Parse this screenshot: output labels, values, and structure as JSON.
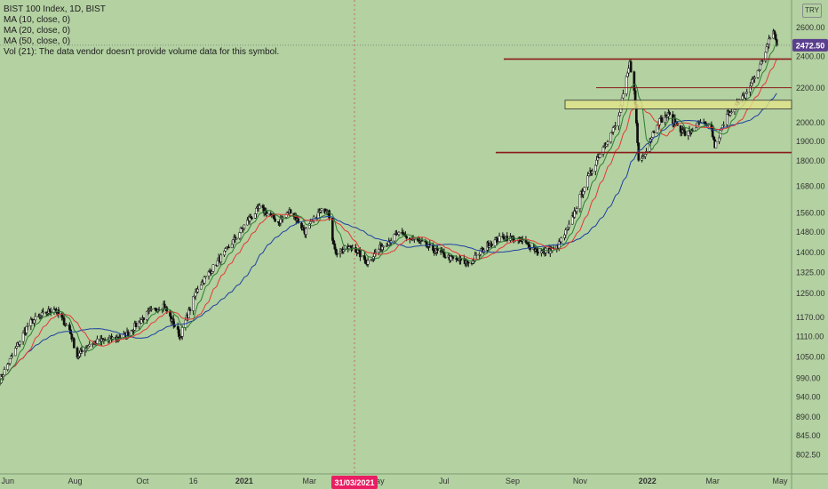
{
  "legend": {
    "symbol": "BIST 100 Index, 1D, BIST",
    "ma10": "MA (10, close, 0)",
    "ma20": "MA (20, close, 0)",
    "ma50": "MA (50, close, 0)",
    "vol": "Vol (21): The data vendor doesn't provide volume data for this symbol."
  },
  "currency": "TRY",
  "colors": {
    "background": "#b3d1a1",
    "candle": "#111111",
    "ma10": "#2e7d32",
    "ma20": "#e53935",
    "ma50": "#1e3fa0",
    "support_line": "#8b1a1a",
    "zone_fill": "#e2e48a",
    "price_badge": "#5b3f8f",
    "date_badge": "#e91e63"
  },
  "chart_data": {
    "type": "candlestick",
    "y_scale": "log",
    "ylim": [
      760,
      2800
    ],
    "x_ticks": [
      "Jun",
      "Aug",
      "Oct",
      "16",
      "2021",
      "Mar",
      "May",
      "Jul",
      "Sep",
      "Nov",
      "2022",
      "Mar",
      "May"
    ],
    "y_ticks": [
      "2600.00",
      "2400.00",
      "2200.00",
      "2000.00",
      "1900.00",
      "1800.00",
      "1680.00",
      "1560.00",
      "1480.00",
      "1400.00",
      "1325.00",
      "1250.00",
      "1170.00",
      "1110.00",
      "1050.00",
      "990.00",
      "940.00",
      "890.00",
      "845.00",
      "802.50"
    ],
    "last_price": "2472.50",
    "crosshair_date": "31/03/2021",
    "horizontal_lines": [
      {
        "value": 2380,
        "start": "Nov 2021"
      },
      {
        "value": 2200,
        "start": "Nov 2021"
      },
      {
        "value": 1840,
        "start": "Oct 2021"
      }
    ],
    "zone": {
      "from": 2075,
      "to": 2125,
      "start": "Nov 2021"
    },
    "anchors": [
      {
        "date": "2020-05-25",
        "close": 985
      },
      {
        "date": "2020-06-20",
        "close": 1150
      },
      {
        "date": "2020-07-13",
        "close": 1200
      },
      {
        "date": "2020-07-27",
        "close": 1130
      },
      {
        "date": "2020-08-03",
        "close": 1050
      },
      {
        "date": "2020-08-15",
        "close": 1090
      },
      {
        "date": "2020-09-15",
        "close": 1110
      },
      {
        "date": "2020-10-05",
        "close": 1180
      },
      {
        "date": "2020-10-20",
        "close": 1210
      },
      {
        "date": "2020-11-04",
        "close": 1110
      },
      {
        "date": "2020-11-20",
        "close": 1270
      },
      {
        "date": "2020-12-15",
        "close": 1400
      },
      {
        "date": "2021-01-05",
        "close": 1530
      },
      {
        "date": "2021-01-15",
        "close": 1580
      },
      {
        "date": "2021-02-01",
        "close": 1520
      },
      {
        "date": "2021-02-12",
        "close": 1570
      },
      {
        "date": "2021-02-25",
        "close": 1480
      },
      {
        "date": "2021-03-10",
        "close": 1560
      },
      {
        "date": "2021-03-18",
        "close": 1580
      },
      {
        "date": "2021-03-24",
        "close": 1400
      },
      {
        "date": "2021-04-10",
        "close": 1420
      },
      {
        "date": "2021-04-22",
        "close": 1360
      },
      {
        "date": "2021-05-05",
        "close": 1420
      },
      {
        "date": "2021-05-20",
        "close": 1470
      },
      {
        "date": "2021-06-08",
        "close": 1440
      },
      {
        "date": "2021-06-25",
        "close": 1400
      },
      {
        "date": "2021-07-10",
        "close": 1370
      },
      {
        "date": "2021-07-25",
        "close": 1360
      },
      {
        "date": "2021-08-10",
        "close": 1430
      },
      {
        "date": "2021-08-25",
        "close": 1460
      },
      {
        "date": "2021-09-10",
        "close": 1440
      },
      {
        "date": "2021-09-25",
        "close": 1400
      },
      {
        "date": "2021-10-10",
        "close": 1410
      },
      {
        "date": "2021-10-22",
        "close": 1500
      },
      {
        "date": "2021-11-05",
        "close": 1680
      },
      {
        "date": "2021-11-20",
        "close": 1850
      },
      {
        "date": "2021-12-05",
        "close": 2000
      },
      {
        "date": "2021-12-16",
        "close": 2350
      },
      {
        "date": "2021-12-20",
        "close": 2200
      },
      {
        "date": "2021-12-24",
        "close": 1800
      },
      {
        "date": "2021-12-28",
        "close": 1820
      },
      {
        "date": "2022-01-10",
        "close": 2000
      },
      {
        "date": "2022-01-20",
        "close": 2040
      },
      {
        "date": "2022-02-05",
        "close": 1930
      },
      {
        "date": "2022-02-18",
        "close": 2000
      },
      {
        "date": "2022-02-28",
        "close": 1960
      },
      {
        "date": "2022-03-03",
        "close": 1870
      },
      {
        "date": "2022-03-15",
        "close": 2050
      },
      {
        "date": "2022-03-30",
        "close": 2150
      },
      {
        "date": "2022-04-12",
        "close": 2320
      },
      {
        "date": "2022-04-25",
        "close": 2580
      },
      {
        "date": "2022-04-28",
        "close": 2472.5
      }
    ]
  }
}
